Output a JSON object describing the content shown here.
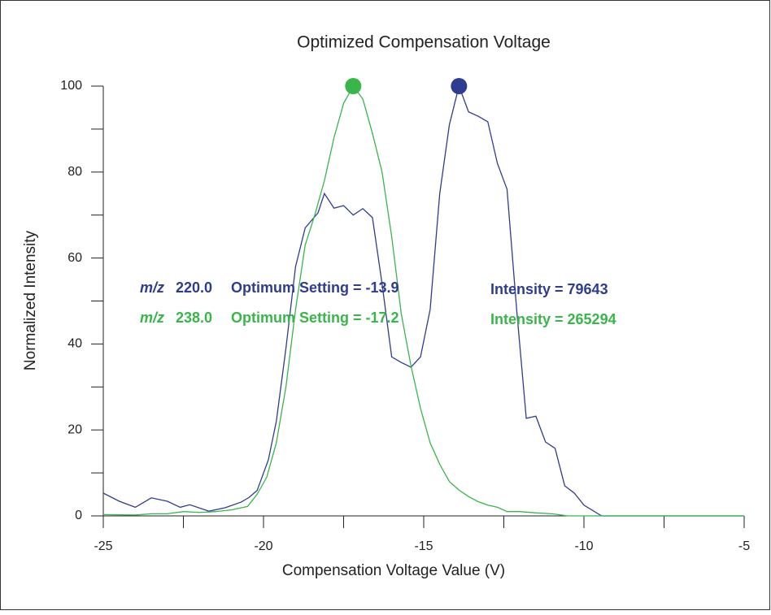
{
  "chart_data": {
    "type": "line",
    "title": "Optimized Compensation Voltage",
    "x_label": "Compensation Voltage Value (V)",
    "y_label": "Normalized Intensity",
    "xlim": [
      -25,
      -5
    ],
    "ylim": [
      0,
      100
    ],
    "xticks": [
      -25,
      -20,
      -15,
      -10,
      -5
    ],
    "xminorticks": [
      -22.5,
      -17.5,
      -12.5,
      -7.5
    ],
    "yticks": [
      0,
      20,
      40,
      60,
      80,
      100
    ],
    "yminorticks": [
      10,
      30,
      50,
      70,
      90
    ],
    "mz_label": "m/z",
    "series": [
      {
        "name": "220.0",
        "color": "#2e3d8f",
        "optimum": "Optimum Setting = -13.9",
        "intensity": "Intensity = 79643",
        "peak": {
          "x": -13.9,
          "y": 100
        },
        "x": [
          -25,
          -24.5,
          -24.0,
          -23.5,
          -23.0,
          -22.6,
          -22.3,
          -21.7,
          -21.2,
          -20.7,
          -20.45,
          -20.2,
          -19.85,
          -19.6,
          -19.3,
          -19.0,
          -18.7,
          -18.3,
          -18.1,
          -17.8,
          -17.5,
          -17.2,
          -16.9,
          -16.6,
          -16.3,
          -16.0,
          -15.7,
          -15.4,
          -15.1,
          -14.8,
          -14.5,
          -14.2,
          -13.9,
          -13.6,
          -13.3,
          -13.0,
          -12.7,
          -12.4,
          -12.1,
          -11.8,
          -11.5,
          -11.2,
          -10.9,
          -10.6,
          -10.3,
          -10.0,
          -9.45,
          -5
        ],
        "values": [
          5.3,
          3.4,
          2,
          4.2,
          3.4,
          2,
          2.6,
          1.1,
          1.9,
          3.2,
          4.3,
          5.9,
          13,
          22,
          39,
          58,
          67,
          70.5,
          75,
          71.6,
          72.2,
          70,
          71.5,
          69.4,
          54,
          37,
          35.7,
          34.6,
          37,
          48,
          75,
          91,
          100,
          94,
          93,
          91.7,
          82,
          76,
          48,
          22.7,
          23.2,
          17.2,
          15.7,
          7,
          5.3,
          2.5,
          0,
          0
        ]
      },
      {
        "name": "238.0",
        "color": "#3ab54a",
        "optimum": "Optimum Setting = -17.2",
        "intensity": "Intensity = 265294",
        "peak": {
          "x": -17.2,
          "y": 100
        },
        "x": [
          -25,
          -24,
          -23.5,
          -23,
          -22.5,
          -22,
          -21.5,
          -21,
          -20.5,
          -20.2,
          -19.9,
          -19.6,
          -19.3,
          -19.0,
          -18.7,
          -18.4,
          -18.1,
          -17.8,
          -17.5,
          -17.2,
          -16.9,
          -16.6,
          -16.3,
          -16.0,
          -15.7,
          -15.4,
          -15.1,
          -14.8,
          -14.5,
          -14.2,
          -13.9,
          -13.6,
          -13.3,
          -13.0,
          -12.7,
          -12.4,
          -12,
          -11.5,
          -11,
          -10.5,
          -5
        ],
        "values": [
          0.3,
          0.2,
          0.5,
          0.5,
          1,
          0.8,
          1,
          1.4,
          2.2,
          5,
          9,
          17,
          30,
          48,
          63,
          70,
          78,
          88,
          96,
          100,
          97,
          89,
          80,
          65,
          47,
          35,
          25,
          17,
          12,
          8,
          6,
          4.5,
          3.3,
          2.5,
          2,
          1,
          1,
          0.7,
          0.5,
          0,
          0
        ]
      }
    ]
  }
}
